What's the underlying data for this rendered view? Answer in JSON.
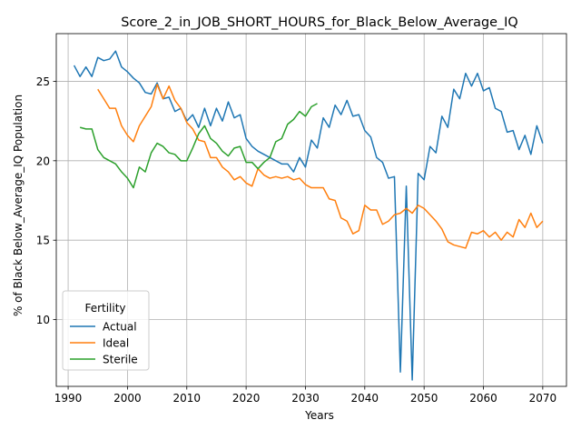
{
  "chart_data": {
    "type": "line",
    "title": "Score_2_in_JOB_SHORT_HOURS_for_Black_Below_Average_IQ",
    "xlabel": "Years",
    "ylabel": "% of Black Below_Average_IQ Population",
    "xlim": [
      1988,
      2074
    ],
    "ylim": [
      5.8,
      28.0
    ],
    "xticks": [
      1990,
      2000,
      2010,
      2020,
      2030,
      2040,
      2050,
      2060,
      2070
    ],
    "yticks": [
      10,
      15,
      20,
      25
    ],
    "grid": true,
    "legend": {
      "title": "Fertility",
      "position": "lower-left"
    },
    "series": [
      {
        "name": "Actual",
        "color": "#1f77b4",
        "x": [
          1991,
          1992,
          1993,
          1994,
          1995,
          1996,
          1997,
          1998,
          1999,
          2000,
          2001,
          2002,
          2003,
          2004,
          2005,
          2006,
          2007,
          2008,
          2009,
          2010,
          2011,
          2012,
          2013,
          2014,
          2015,
          2016,
          2017,
          2018,
          2019,
          2020,
          2021,
          2022,
          2023,
          2024,
          2025,
          2026,
          2027,
          2028,
          2029,
          2030,
          2031,
          2032,
          2033,
          2034,
          2035,
          2036,
          2037,
          2038,
          2039,
          2040,
          2041,
          2042,
          2043,
          2044,
          2045,
          2046,
          2047,
          2048,
          2049,
          2050,
          2051,
          2052,
          2053,
          2054,
          2055,
          2056,
          2057,
          2058,
          2059,
          2060,
          2061,
          2062,
          2063,
          2064,
          2065,
          2066,
          2067,
          2068,
          2069,
          2070
        ],
        "values": [
          26.0,
          25.3,
          25.9,
          25.3,
          26.5,
          26.3,
          26.4,
          26.9,
          25.9,
          25.6,
          25.2,
          24.9,
          24.3,
          24.2,
          24.9,
          23.9,
          24.0,
          23.1,
          23.3,
          22.5,
          22.9,
          22.1,
          23.3,
          22.2,
          23.3,
          22.5,
          23.7,
          22.7,
          22.9,
          21.4,
          20.9,
          20.6,
          20.4,
          20.2,
          20.0,
          19.8,
          19.8,
          19.3,
          20.2,
          19.6,
          21.3,
          20.8,
          22.7,
          22.1,
          23.5,
          22.9,
          23.8,
          22.8,
          22.9,
          21.9,
          21.5,
          20.2,
          19.9,
          18.9,
          19.0,
          6.7,
          18.4,
          6.2,
          19.2,
          18.8,
          20.9,
          20.5,
          22.8,
          22.1,
          24.5,
          23.9,
          25.5,
          24.7,
          25.5,
          24.4,
          24.6,
          23.3,
          23.1,
          21.8,
          21.9,
          20.7,
          21.6,
          20.4,
          22.2,
          21.1
        ]
      },
      {
        "name": "Ideal",
        "color": "#ff7f0e",
        "x": [
          1995,
          1996,
          1997,
          1998,
          1999,
          2000,
          2001,
          2002,
          2003,
          2004,
          2005,
          2006,
          2007,
          2008,
          2009,
          2010,
          2011,
          2012,
          2013,
          2014,
          2015,
          2016,
          2017,
          2018,
          2019,
          2020,
          2021,
          2022,
          2023,
          2024,
          2025,
          2026,
          2027,
          2028,
          2029,
          2030,
          2031,
          2032,
          2033,
          2034,
          2035,
          2036,
          2037,
          2038,
          2039,
          2040,
          2041,
          2042,
          2043,
          2044,
          2045,
          2046,
          2047,
          2048,
          2049,
          2050,
          2051,
          2052,
          2053,
          2054,
          2055,
          2056,
          2057,
          2058,
          2059,
          2060,
          2061,
          2062,
          2063,
          2064,
          2065,
          2066,
          2067,
          2068,
          2069,
          2070
        ],
        "values": [
          24.5,
          23.9,
          23.3,
          23.3,
          22.2,
          21.6,
          21.2,
          22.2,
          22.8,
          23.4,
          24.8,
          23.9,
          24.7,
          23.8,
          23.3,
          22.4,
          22.0,
          21.3,
          21.2,
          20.2,
          20.2,
          19.6,
          19.3,
          18.8,
          19.0,
          18.6,
          18.4,
          19.5,
          19.1,
          18.9,
          19.0,
          18.9,
          19.0,
          18.8,
          18.9,
          18.5,
          18.3,
          18.3,
          18.3,
          17.6,
          17.5,
          16.4,
          16.2,
          15.4,
          15.6,
          17.2,
          16.9,
          16.9,
          16.0,
          16.2,
          16.6,
          16.7,
          17.0,
          16.7,
          17.2,
          17.0,
          16.6,
          16.2,
          15.7,
          14.9,
          14.7,
          14.6,
          14.5,
          15.5,
          15.4,
          15.6,
          15.2,
          15.5,
          15.0,
          15.5,
          15.2,
          16.3,
          15.8,
          16.7,
          15.8,
          16.2
        ]
      },
      {
        "name": "Sterile",
        "color": "#2ca02c",
        "x": [
          1992,
          1993,
          1994,
          1995,
          1996,
          1997,
          1998,
          1999,
          2000,
          2001,
          2002,
          2003,
          2004,
          2005,
          2006,
          2007,
          2008,
          2009,
          2010,
          2011,
          2012,
          2013,
          2014,
          2015,
          2016,
          2017,
          2018,
          2019,
          2020,
          2021,
          2022,
          2023,
          2024,
          2025,
          2026,
          2027,
          2028,
          2029,
          2030,
          2031,
          2032
        ],
        "values": [
          22.1,
          22.0,
          22.0,
          20.7,
          20.2,
          20.0,
          19.8,
          19.3,
          18.9,
          18.3,
          19.6,
          19.3,
          20.5,
          21.1,
          20.9,
          20.5,
          20.4,
          20.0,
          20.0,
          20.8,
          21.7,
          22.2,
          21.4,
          21.1,
          20.6,
          20.3,
          20.8,
          20.9,
          19.9,
          19.9,
          19.5,
          19.9,
          20.2,
          21.2,
          21.4,
          22.3,
          22.6,
          23.1,
          22.8,
          23.4,
          23.6
        ]
      }
    ]
  }
}
